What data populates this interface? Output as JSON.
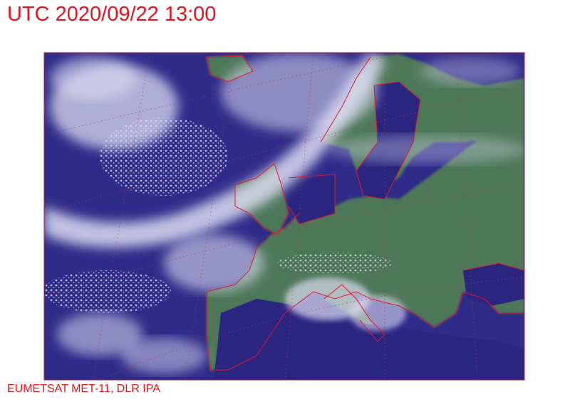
{
  "header": {
    "title": "UTC 2020/09/22 13:00"
  },
  "footer": {
    "credit": "EUMETSAT MET-11, DLR IPA"
  },
  "map": {
    "type": "satellite-composite",
    "colors": {
      "sea": "#2e2a86",
      "land": "#4f7a5a",
      "cloud": "#e6e6f5",
      "coastline": "#e0182a",
      "text": "#e8141a"
    }
  }
}
